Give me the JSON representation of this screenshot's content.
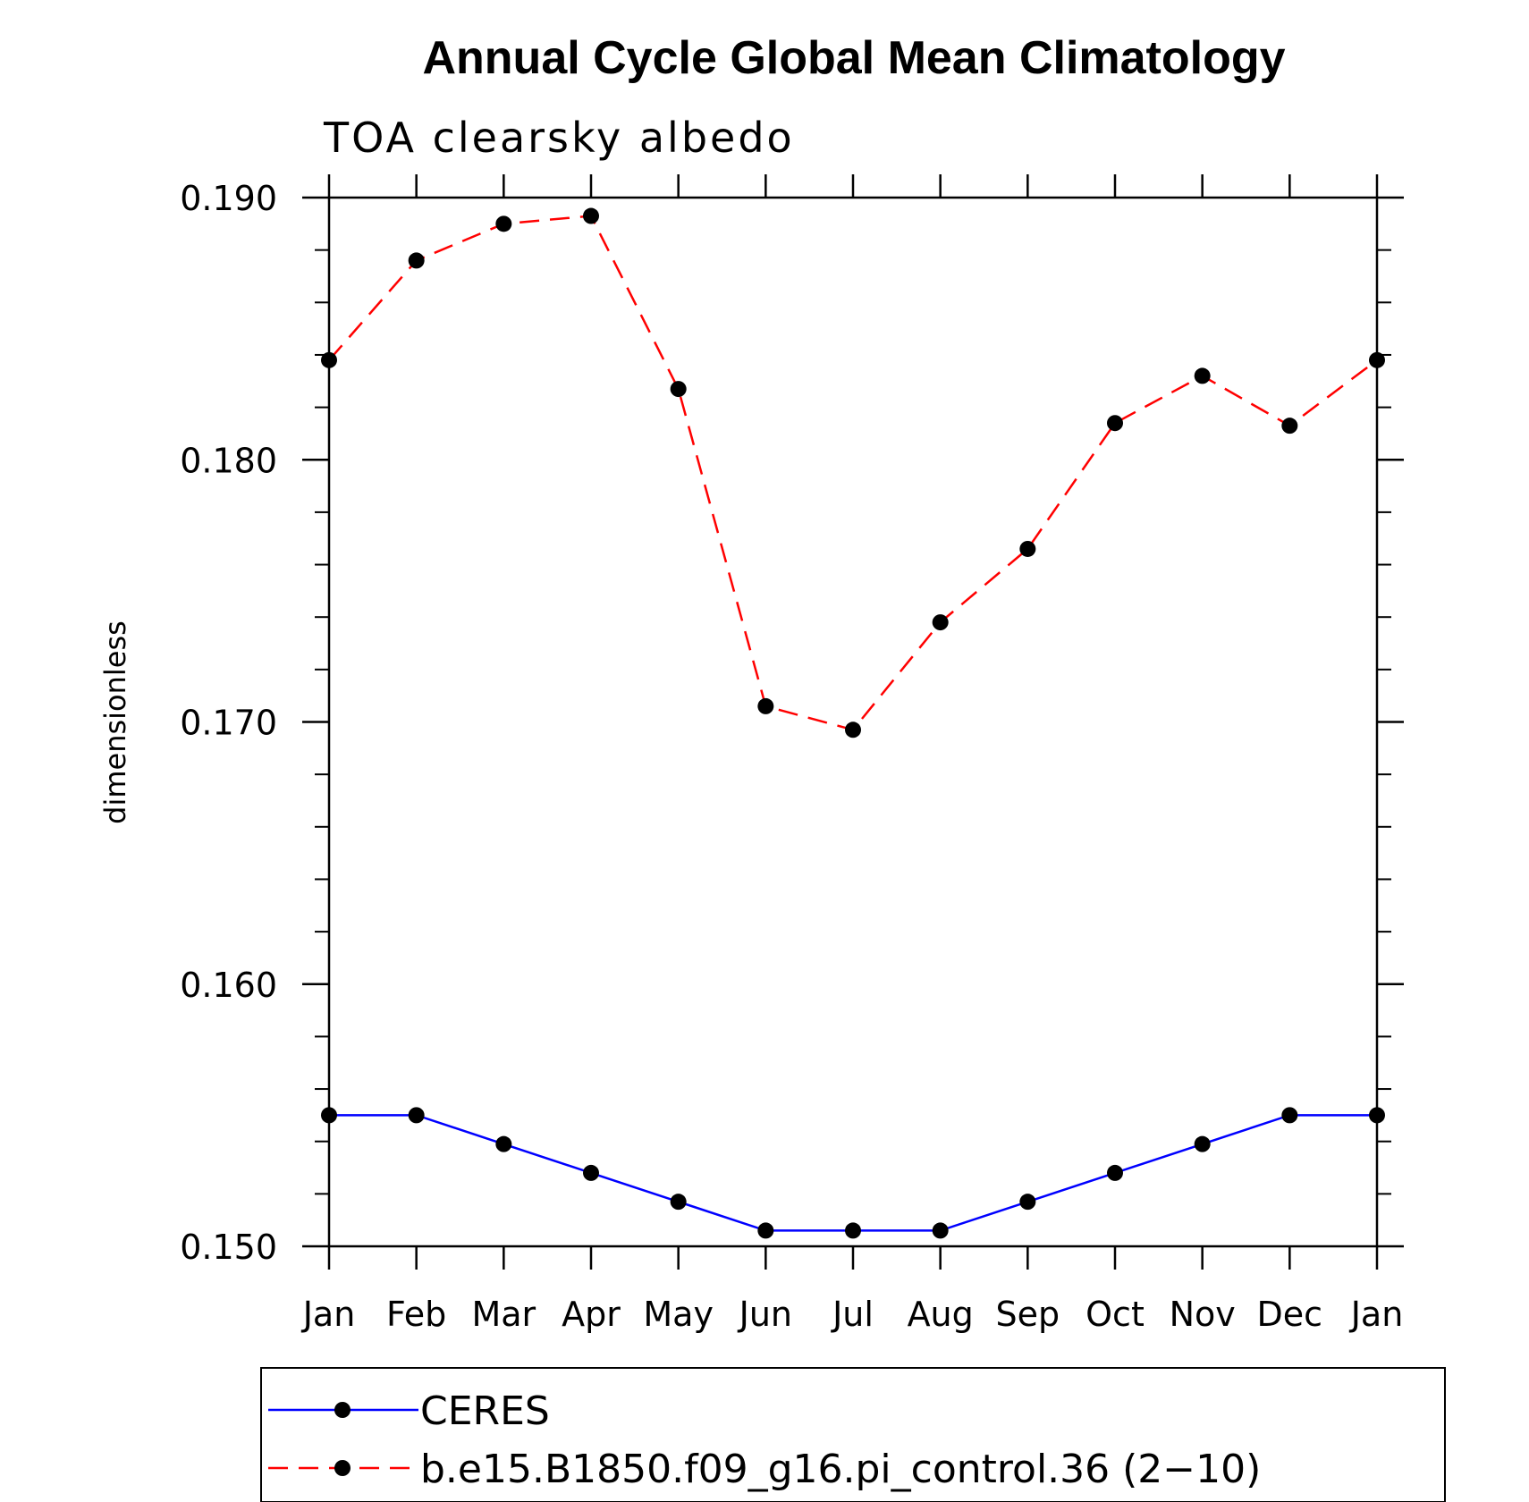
{
  "chart_data": {
    "type": "line",
    "title": "Annual Cycle Global Mean Climatology",
    "subtitle": "TOA clearsky albedo",
    "ylabel": "dimensionless",
    "xlabel": "",
    "categories": [
      "Jan",
      "Feb",
      "Mar",
      "Apr",
      "May",
      "Jun",
      "Jul",
      "Aug",
      "Sep",
      "Oct",
      "Nov",
      "Dec",
      "Jan"
    ],
    "ylim": [
      0.15,
      0.19
    ],
    "yticks": [
      "0.150",
      "0.160",
      "0.170",
      "0.180",
      "0.190"
    ],
    "yminor_step": 0.002,
    "series": [
      {
        "name": "CERES",
        "color": "#0000ff",
        "dash": "solid",
        "marker": "filled-circle",
        "values": [
          0.155,
          0.155,
          0.1539,
          0.1528,
          0.1517,
          0.1506,
          0.1506,
          0.1506,
          0.1517,
          0.1528,
          0.1539,
          0.155,
          0.155
        ]
      },
      {
        "name": "b.e15.B1850.f09_g16.pi_control.36 (2−10)",
        "color": "#ff0000",
        "dash": "dashed",
        "marker": "filled-circle",
        "values": [
          0.1838,
          0.1876,
          0.189,
          0.1893,
          0.1827,
          0.1706,
          0.1697,
          0.1738,
          0.1766,
          0.1814,
          0.1832,
          0.1813,
          0.1838
        ]
      }
    ],
    "legend_position": "bottom",
    "grid": false
  }
}
